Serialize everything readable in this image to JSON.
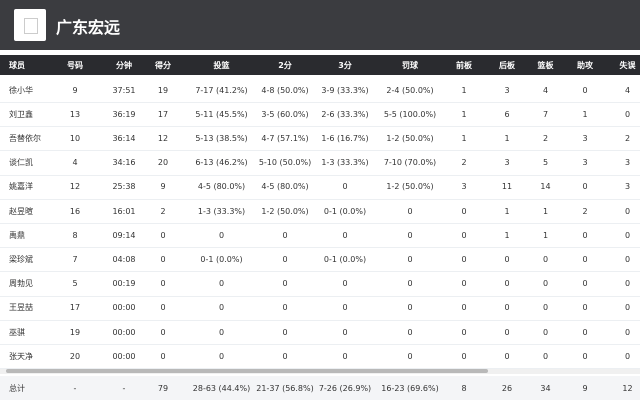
{
  "header": {
    "title": "广东宏远"
  },
  "table": {
    "columns": [
      "球员",
      "号码",
      "分钟",
      "得分",
      "投篮",
      "2分",
      "3分",
      "罚球",
      "前板",
      "后板",
      "篮板",
      "助攻",
      "失误"
    ],
    "rows": [
      [
        "徐小华",
        9,
        "37:51",
        19,
        "7-17 (41.2%)",
        "4-8 (50.0%)",
        "3-9 (33.3%)",
        "2-4 (50.0%)",
        1,
        3,
        4,
        0,
        4
      ],
      [
        "刘卫鑫",
        13,
        "36:19",
        17,
        "5-11 (45.5%)",
        "3-5 (60.0%)",
        "2-6 (33.3%)",
        "5-5 (100.0%)",
        1,
        6,
        7,
        1,
        0
      ],
      [
        "吾替依尔",
        10,
        "36:14",
        12,
        "5-13 (38.5%)",
        "4-7 (57.1%)",
        "1-6 (16.7%)",
        "1-2 (50.0%)",
        1,
        1,
        2,
        3,
        2
      ],
      [
        "谈仁凯",
        4,
        "34:16",
        20,
        "6-13 (46.2%)",
        "5-10 (50.0%)",
        "1-3 (33.3%)",
        "7-10 (70.0%)",
        2,
        3,
        5,
        3,
        3
      ],
      [
        "姚嘉洋",
        12,
        "25:38",
        9,
        "4-5 (80.0%)",
        "4-5 (80.0%)",
        0,
        "1-2 (50.0%)",
        3,
        11,
        14,
        0,
        3
      ],
      [
        "赵昱暄",
        16,
        "16:01",
        2,
        "1-3 (33.3%)",
        "1-2 (50.0%)",
        "0-1 (0.0%)",
        0,
        0,
        1,
        1,
        2,
        0
      ],
      [
        "禹鼎",
        8,
        "09:14",
        0,
        0,
        0,
        0,
        0,
        0,
        1,
        1,
        0,
        0
      ],
      [
        "梁珍斌",
        7,
        "04:08",
        0,
        "0-1 (0.0%)",
        0,
        "0-1 (0.0%)",
        0,
        0,
        0,
        0,
        0,
        0
      ],
      [
        "周勃见",
        5,
        "00:19",
        0,
        0,
        0,
        0,
        0,
        0,
        0,
        0,
        0,
        0
      ],
      [
        "王昱喆",
        17,
        "00:00",
        0,
        0,
        0,
        0,
        0,
        0,
        0,
        0,
        0,
        0
      ],
      [
        "巫骐",
        19,
        "00:00",
        0,
        0,
        0,
        0,
        0,
        0,
        0,
        0,
        0,
        0
      ],
      [
        "张天净",
        20,
        "00:00",
        0,
        0,
        0,
        0,
        0,
        0,
        0,
        0,
        0,
        0
      ]
    ],
    "total": [
      "总计",
      "-",
      "-",
      79,
      "28-63 (44.4%)",
      "21-37 (56.8%)",
      "7-26 (26.9%)",
      "16-23 (69.6%)",
      8,
      26,
      34,
      9,
      12
    ]
  }
}
